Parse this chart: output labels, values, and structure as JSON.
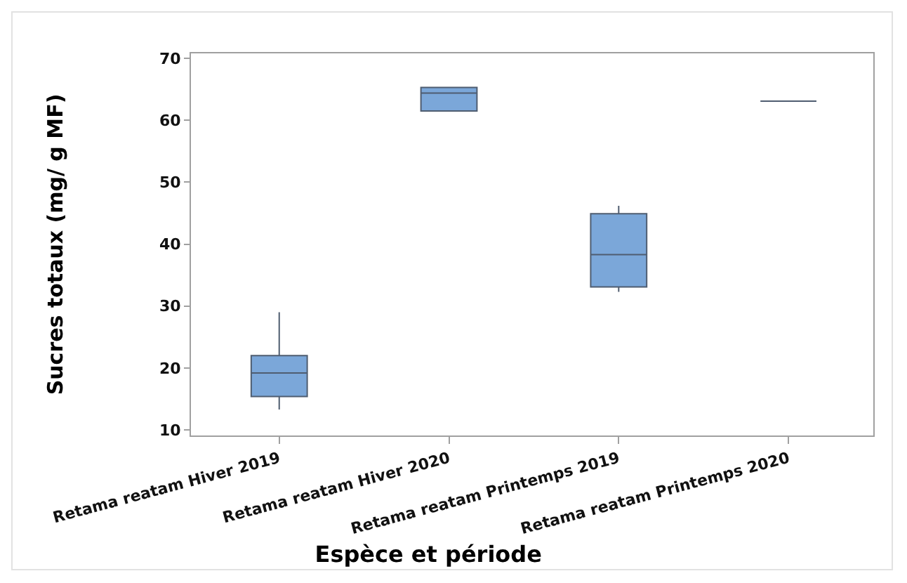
{
  "chart_data": {
    "type": "box",
    "xlabel": "Espèce et période",
    "ylabel": "Sucres totaux (mg/ g MF)",
    "categories": [
      "Retama reatam Hiver 2019",
      "Retama reatam Hiver 2020",
      "Retama reatam Printemps 2019",
      "Retama reatam Printemps 2020"
    ],
    "series": [
      {
        "colors": [
          "#7ba7d9",
          "#7ba7d9",
          "#7ba7d9",
          "#4f5d70"
        ],
        "boxes": [
          {
            "low": 13.3,
            "q1": 15.4,
            "median": 19.2,
            "q3": 22.0,
            "high": 29.0
          },
          {
            "low": 61.5,
            "q1": 61.5,
            "median": 64.4,
            "q3": 65.3,
            "high": 65.3
          },
          {
            "low": 32.3,
            "q1": 33.1,
            "median": 38.3,
            "q3": 44.9,
            "high": 46.2
          },
          {
            "low": 63.1,
            "q1": 63.1,
            "median": 63.1,
            "q3": 63.1,
            "high": 63.1
          }
        ]
      }
    ],
    "ylim": [
      9.1,
      70.8
    ],
    "yticks": [
      10,
      20,
      30,
      40,
      50,
      60,
      70
    ],
    "grid": false
  }
}
